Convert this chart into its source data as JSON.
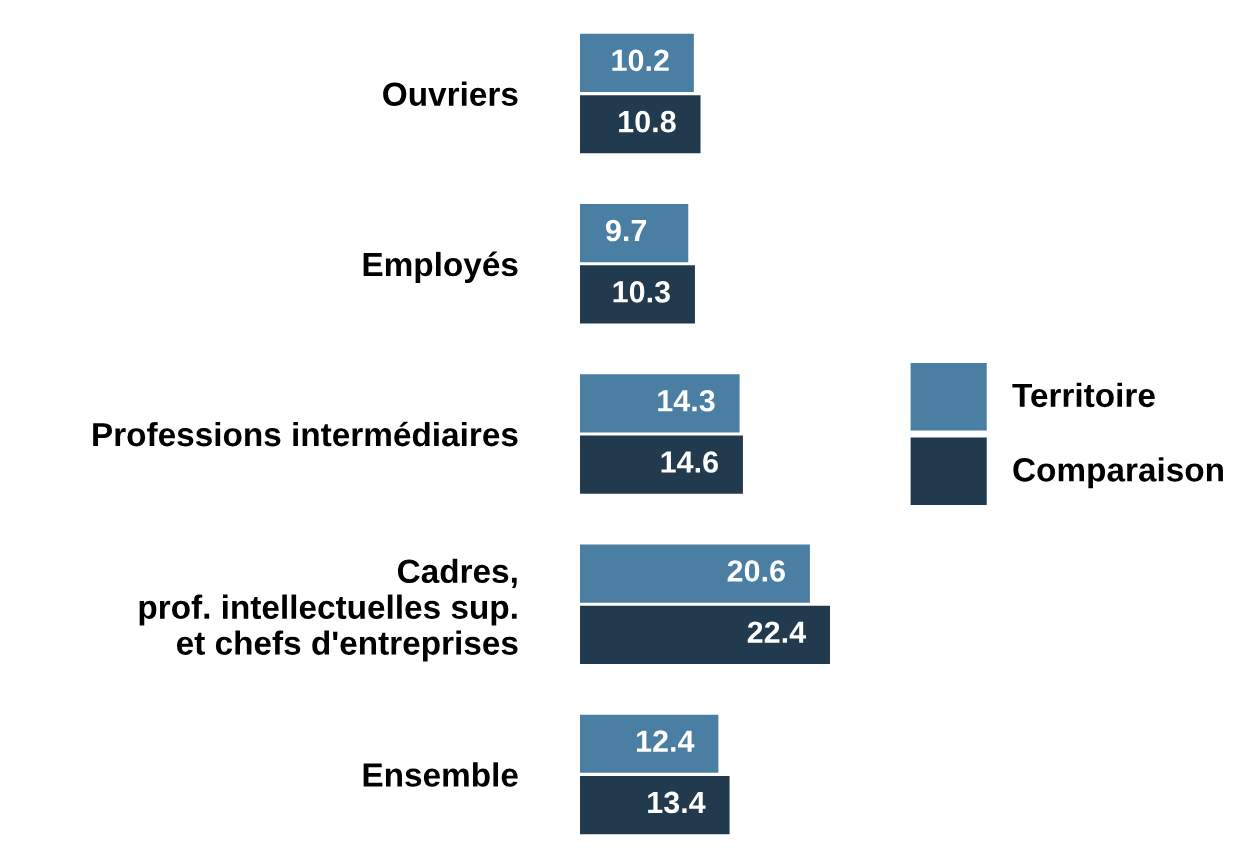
{
  "chart_data": {
    "type": "bar",
    "orientation": "horizontal",
    "categories": [
      "Ouvriers",
      "Employés",
      "Professions intermédiaires",
      "Cadres,\nprof. intellectuelles sup.\net chefs d'entreprises",
      "Ensemble"
    ],
    "series": [
      {
        "name": "Territoire",
        "color": "#4a7fa3",
        "values": [
          10.2,
          9.7,
          14.3,
          20.6,
          12.4
        ]
      },
      {
        "name": "Comparaison",
        "color": "#213a4d",
        "values": [
          10.8,
          10.3,
          14.6,
          22.4,
          13.4
        ]
      }
    ],
    "data_labels": true,
    "legend": "right"
  }
}
